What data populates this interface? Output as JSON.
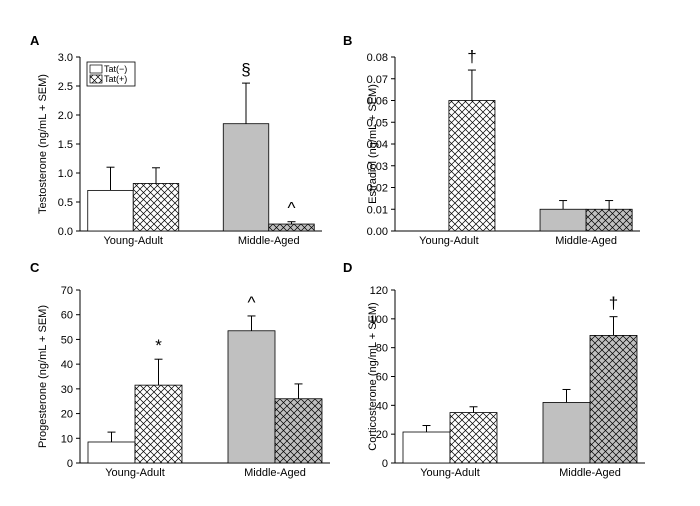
{
  "chart_data": [
    {
      "type": "bar",
      "panel_label": "A",
      "y_label": "Testosterone (ng/mL + SEM)",
      "categories": [
        "Young-Adult",
        "Middle-Aged"
      ],
      "category_colors": [
        "#ffffff",
        "#c0c0c0"
      ],
      "series": [
        {
          "name": "Tat(−)",
          "hatch": false,
          "values": [
            0.7,
            1.85
          ],
          "errors": [
            0.4,
            0.7
          ],
          "markers": [
            null,
            "§"
          ]
        },
        {
          "name": "Tat(+)",
          "hatch": true,
          "values": [
            0.82,
            0.12
          ],
          "errors": [
            0.27,
            0.04
          ],
          "markers": [
            null,
            "^"
          ]
        }
      ],
      "ylim": [
        0,
        3
      ],
      "yticks": [
        {
          "value": 0,
          "label": "0.0"
        },
        {
          "value": 0.5,
          "label": "0.5"
        },
        {
          "value": 1,
          "label": "1.0"
        },
        {
          "value": 1.5,
          "label": "1.5"
        },
        {
          "value": 2,
          "label": "2.0"
        },
        {
          "value": 2.5,
          "label": "2.5"
        },
        {
          "value": 3,
          "label": "3.0"
        }
      ],
      "legend": "upper left"
    },
    {
      "type": "bar",
      "panel_label": "B",
      "y_label": "Estradiol (ng/mL + SEM)",
      "categories": [
        "Young-Adult",
        "Middle-Aged"
      ],
      "category_colors": [
        "#ffffff",
        "#c0c0c0"
      ],
      "series": [
        {
          "name": "Tat(−)",
          "hatch": false,
          "values": [
            0,
            0.01
          ],
          "errors": [
            0,
            0.004
          ],
          "markers": [
            null,
            null
          ]
        },
        {
          "name": "Tat(+)",
          "hatch": true,
          "values": [
            0.06,
            0.01
          ],
          "errors": [
            0.014,
            0.004
          ],
          "markers": [
            "†",
            null
          ]
        }
      ],
      "ylim": [
        0,
        0.08
      ],
      "yticks": [
        {
          "value": 0,
          "label": "0.00"
        },
        {
          "value": 0.01,
          "label": "0.01"
        },
        {
          "value": 0.02,
          "label": "0.02"
        },
        {
          "value": 0.03,
          "label": "0.03"
        },
        {
          "value": 0.04,
          "label": "0.04"
        },
        {
          "value": 0.05,
          "label": "0.05"
        },
        {
          "value": 0.06,
          "label": "0.06"
        },
        {
          "value": 0.07,
          "label": "0.07"
        },
        {
          "value": 0.08,
          "label": "0.08"
        }
      ]
    },
    {
      "type": "bar",
      "panel_label": "C",
      "y_label": "Progesterone (ng/mL + SEM)",
      "categories": [
        "Young-Adult",
        "Middle-Aged"
      ],
      "category_colors": [
        "#ffffff",
        "#c0c0c0"
      ],
      "series": [
        {
          "name": "Tat(−)",
          "hatch": false,
          "values": [
            8.5,
            53.5
          ],
          "errors": [
            4,
            6
          ],
          "markers": [
            null,
            "^"
          ]
        },
        {
          "name": "Tat(+)",
          "hatch": true,
          "values": [
            31.5,
            26
          ],
          "errors": [
            10.5,
            6
          ],
          "markers": [
            "*",
            null
          ]
        }
      ],
      "ylim": [
        0,
        70
      ],
      "yticks": [
        0,
        10,
        20,
        30,
        40,
        50,
        60,
        70
      ]
    },
    {
      "type": "bar",
      "panel_label": "D",
      "y_label": "Corticosterone (ng/mL + SEM)",
      "categories": [
        "Young-Adult",
        "Middle-Aged"
      ],
      "category_colors": [
        "#ffffff",
        "#c0c0c0"
      ],
      "series": [
        {
          "name": "Tat(−)",
          "hatch": false,
          "values": [
            21.5,
            42
          ],
          "errors": [
            4.5,
            9
          ],
          "markers": [
            null,
            null
          ]
        },
        {
          "name": "Tat(+)",
          "hatch": true,
          "values": [
            35,
            88.5
          ],
          "errors": [
            4,
            13
          ],
          "markers": [
            null,
            "†"
          ]
        }
      ],
      "ylim": [
        0,
        120
      ],
      "yticks": [
        0,
        20,
        40,
        60,
        80,
        100,
        120
      ]
    }
  ]
}
